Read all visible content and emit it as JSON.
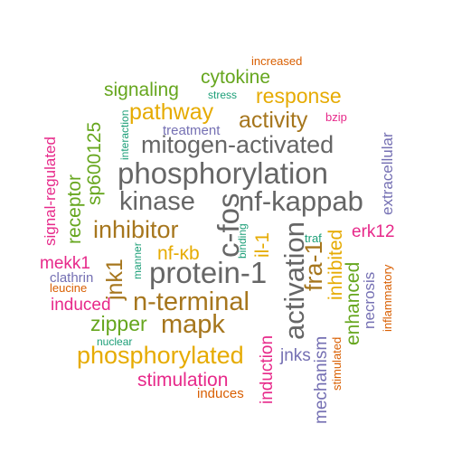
{
  "colors": {
    "grey": "#666666",
    "brown": "#A6761D",
    "gold": "#E6AB02",
    "green": "#66A61E",
    "magenta": "#E7298A",
    "purple": "#7570B3",
    "orange": "#D95F02",
    "teal": "#1B9E77"
  },
  "words": [
    {
      "text": "increased",
      "color": "orange"
    },
    {
      "text": "cytokine",
      "color": "green"
    },
    {
      "text": "signaling",
      "color": "green"
    },
    {
      "text": "stress",
      "color": "teal"
    },
    {
      "text": "response",
      "color": "gold"
    },
    {
      "text": "pathway",
      "color": "gold"
    },
    {
      "text": "bzip",
      "color": "magenta"
    },
    {
      "text": "activity",
      "color": "brown"
    },
    {
      "text": "interaction",
      "color": "teal"
    },
    {
      "text": "treatment",
      "color": "purple"
    },
    {
      "text": "mitogen-activated",
      "color": "grey"
    },
    {
      "text": "sp600125",
      "color": "green"
    },
    {
      "text": "signal-regulated",
      "color": "magenta"
    },
    {
      "text": "phosphorylation",
      "color": "grey"
    },
    {
      "text": "extracellular",
      "color": "purple"
    },
    {
      "text": "receptor",
      "color": "green"
    },
    {
      "text": "kinase",
      "color": "grey"
    },
    {
      "text": "c-fos",
      "color": "grey"
    },
    {
      "text": "nf-kappab",
      "color": "grey"
    },
    {
      "text": "inhibitor",
      "color": "brown"
    },
    {
      "text": "binding",
      "color": "teal"
    },
    {
      "text": "traf",
      "color": "teal"
    },
    {
      "text": "erk12",
      "color": "magenta"
    },
    {
      "text": "nf-κb",
      "color": "gold"
    },
    {
      "text": "il-1",
      "color": "gold"
    },
    {
      "text": "activation",
      "color": "grey"
    },
    {
      "text": "fra-1",
      "color": "brown"
    },
    {
      "text": "inhibited",
      "color": "gold"
    },
    {
      "text": "mekk1",
      "color": "magenta"
    },
    {
      "text": "manner",
      "color": "teal"
    },
    {
      "text": "jnk1",
      "color": "brown"
    },
    {
      "text": "protein-1",
      "color": "grey"
    },
    {
      "text": "clathrin",
      "color": "purple"
    },
    {
      "text": "leucine",
      "color": "orange"
    },
    {
      "text": "enhanced",
      "color": "green"
    },
    {
      "text": "necrosis",
      "color": "purple"
    },
    {
      "text": "inflammatory",
      "color": "orange"
    },
    {
      "text": "n-terminal",
      "color": "brown"
    },
    {
      "text": "induced",
      "color": "magenta"
    },
    {
      "text": "mapk",
      "color": "brown"
    },
    {
      "text": "zipper",
      "color": "green"
    },
    {
      "text": "nuclear",
      "color": "teal"
    },
    {
      "text": "phosphorylated",
      "color": "gold"
    },
    {
      "text": "jnks",
      "color": "purple"
    },
    {
      "text": "induction",
      "color": "magenta"
    },
    {
      "text": "mechanism",
      "color": "purple"
    },
    {
      "text": "stimulated",
      "color": "orange"
    },
    {
      "text": "stimulation",
      "color": "magenta"
    },
    {
      "text": "induces",
      "color": "orange"
    }
  ]
}
